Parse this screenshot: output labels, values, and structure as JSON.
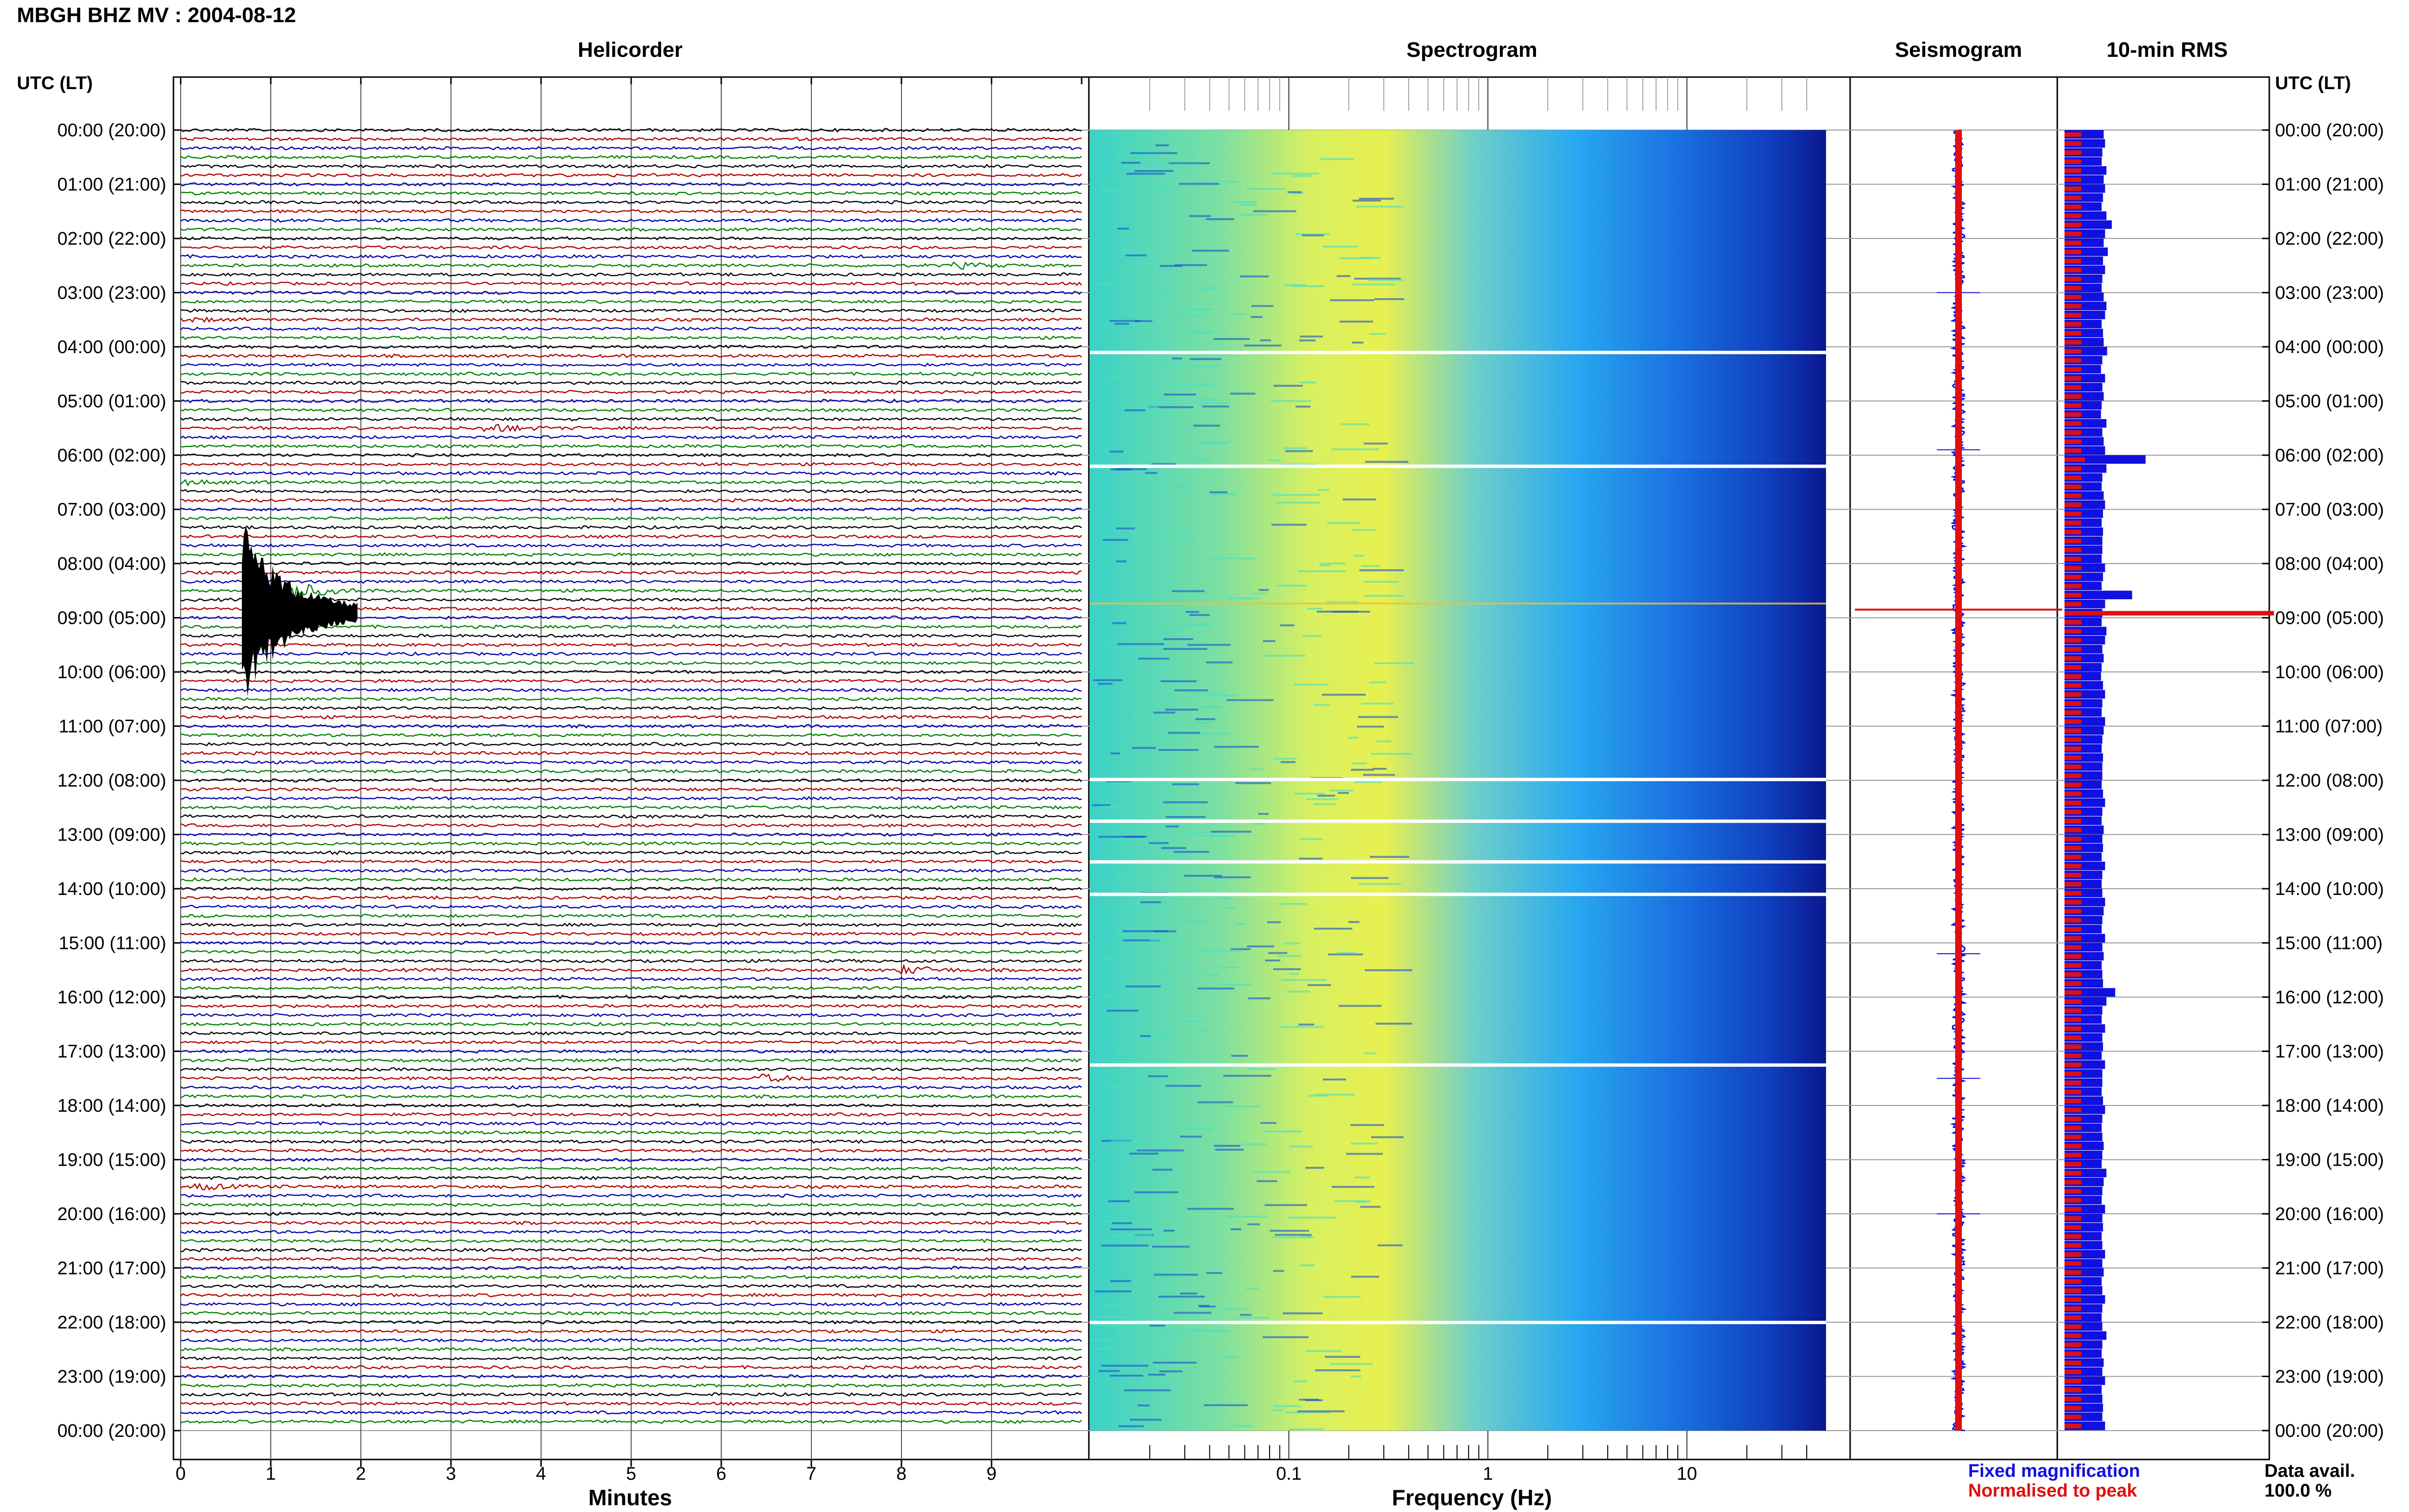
{
  "header": {
    "station_title": "MBGH BHZ MV : 2004-08-12"
  },
  "panels": {
    "helicorder_title": "Helicorder",
    "spectrogram_title": "Spectrogram",
    "seismogram_title": "Seismogram",
    "rms_title": "10-min RMS"
  },
  "axes": {
    "left_time_header": "UTC (LT)",
    "right_time_header": "UTC (LT)",
    "helicorder_xlabel": "Minutes",
    "spectrogram_xlabel": "Frequency (Hz)"
  },
  "legend": {
    "fixed_label": "Fixed magnification",
    "fixed_color": "#1010e0",
    "normalised_label": "Normalised to peak",
    "normalised_color": "#e01010"
  },
  "data_availability": {
    "label": "Data avail.",
    "value": "100.0 %"
  },
  "chart_data": [
    {
      "type": "line",
      "name": "Helicorder",
      "xlabel": "Minutes",
      "xlim": [
        0,
        10
      ],
      "x_ticks": [
        "0",
        "1",
        "2",
        "3",
        "4",
        "5",
        "6",
        "7",
        "8",
        "9"
      ],
      "time_labels": [
        "00:00 (20:00)",
        "01:00 (21:00)",
        "02:00 (22:00)",
        "03:00 (23:00)",
        "04:00 (00:00)",
        "05:00 (01:00)",
        "06:00 (02:00)",
        "07:00 (03:00)",
        "08:00 (04:00)",
        "09:00 (05:00)",
        "10:00 (06:00)",
        "11:00 (07:00)",
        "12:00 (08:00)",
        "13:00 (09:00)",
        "14:00 (10:00)",
        "15:00 (11:00)",
        "16:00 (12:00)",
        "17:00 (13:00)",
        "18:00 (14:00)",
        "19:00 (15:00)",
        "20:00 (16:00)",
        "21:00 (17:00)",
        "22:00 (18:00)",
        "23:00 (19:00)",
        "00:00 (20:00)"
      ],
      "trace_colors": [
        "#000000",
        "#b00000",
        "#0000b0",
        "#008000"
      ],
      "traces_per_hour": 6,
      "events": [
        {
          "hour": 8,
          "minute": 1.0,
          "amplitude": 10.0
        },
        {
          "hour": 5,
          "minute": 3.5,
          "amplitude": 1.6
        },
        {
          "hour": 15,
          "minute": 8.1,
          "amplitude": 1.6
        },
        {
          "hour": 17,
          "minute": 6.5,
          "amplitude": 1.4
        },
        {
          "hour": 2,
          "minute": 8.7,
          "amplitude": 1.0
        },
        {
          "hour": 19,
          "minute": 0.3,
          "amplitude": 1.0
        },
        {
          "hour": 6,
          "minute": 0.1,
          "amplitude": 0.9
        },
        {
          "hour": 3,
          "minute": 0.1,
          "amplitude": 0.8
        }
      ]
    },
    {
      "type": "heatmap",
      "name": "Spectrogram",
      "xlabel": "Frequency (Hz)",
      "x_scale": "log",
      "xlim": [
        0.01,
        50
      ],
      "x_ticks": [
        "0.1",
        "1",
        "10"
      ],
      "colormap": [
        "#3ad2c8",
        "#b8f070",
        "#f0f040",
        "#9ce0a0",
        "#30b0f0",
        "#1060d8",
        "#0a20a0"
      ],
      "gap_rows_hours": [
        4.1,
        6.2,
        11.98,
        12.75,
        13.5,
        14.1,
        17.25,
        22.0
      ]
    },
    {
      "type": "line",
      "name": "Seismogram",
      "spike_hours": [
        8.85,
        5.9,
        15.2,
        17.5,
        20.0,
        3.0
      ]
    },
    {
      "type": "bar",
      "name": "10-min RMS",
      "series": [
        {
          "name": "Fixed magnification",
          "color": "#1010e0",
          "values": [
            0.58,
            0.6,
            0.56,
            0.55,
            0.62,
            0.58,
            0.6,
            0.57,
            0.55,
            0.62,
            0.7,
            0.6,
            0.58,
            0.64,
            0.57,
            0.6,
            0.56,
            0.55,
            0.58,
            0.62,
            0.6,
            0.55,
            0.57,
            0.58,
            0.63,
            0.56,
            0.54,
            0.6,
            0.56,
            0.58,
            0.55,
            0.54,
            0.62,
            0.56,
            0.58,
            0.6,
            1.2,
            0.62,
            0.56,
            0.55,
            0.58,
            0.6,
            0.57,
            0.55,
            0.57,
            0.56,
            0.56,
            0.55,
            0.6,
            0.57,
            0.55,
            1.0,
            0.6,
            0.56,
            0.55,
            0.62,
            0.6,
            0.56,
            0.58,
            0.55,
            0.54,
            0.57,
            0.6,
            0.56,
            0.55,
            0.6,
            0.58,
            0.56,
            0.55,
            0.57,
            0.56,
            0.56,
            0.55,
            0.57,
            0.6,
            0.56,
            0.55,
            0.58,
            0.56,
            0.57,
            0.55,
            0.6,
            0.56,
            0.55,
            0.56,
            0.6,
            0.58,
            0.56,
            0.55,
            0.6,
            0.56,
            0.58,
            0.55,
            0.56,
            0.57,
            0.75,
            0.62,
            0.56,
            0.55,
            0.6,
            0.56,
            0.57,
            0.55,
            0.6,
            0.56,
            0.56,
            0.55,
            0.57,
            0.6,
            0.56,
            0.55,
            0.56,
            0.58,
            0.56,
            0.55,
            0.62,
            0.58,
            0.56,
            0.55,
            0.6,
            0.56,
            0.57,
            0.55,
            0.56,
            0.6,
            0.56,
            0.58,
            0.55,
            0.56,
            0.6,
            0.56,
            0.55,
            0.56,
            0.62,
            0.56,
            0.55,
            0.58,
            0.56,
            0.6,
            0.55,
            0.56,
            0.57,
            0.56,
            0.6
          ]
        },
        {
          "name": "Normalised to peak",
          "color": "#e01010",
          "values": [
            0.25,
            0.25,
            0.25,
            0.25,
            0.25,
            0.25,
            0.25,
            0.25,
            0.25,
            0.25,
            0.25,
            0.25,
            0.25,
            0.25,
            0.25,
            0.25,
            0.25,
            0.25,
            0.25,
            0.25,
            0.25,
            0.25,
            0.25,
            0.25,
            0.25,
            0.25,
            0.25,
            0.25,
            0.25,
            0.25,
            0.25,
            0.25,
            0.25,
            0.25,
            0.25,
            0.25,
            0.3,
            0.25,
            0.25,
            0.25,
            0.25,
            0.25,
            0.25,
            0.25,
            0.25,
            0.25,
            0.25,
            0.25,
            0.25,
            0.25,
            0.25,
            0.25,
            0.25,
            1.0,
            0.25,
            0.25,
            0.25,
            0.25,
            0.25,
            0.25,
            0.25,
            0.25,
            0.25,
            0.25,
            0.25,
            0.25,
            0.25,
            0.25,
            0.25,
            0.25,
            0.25,
            0.25,
            0.25,
            0.25,
            0.25,
            0.25,
            0.25,
            0.25,
            0.25,
            0.25,
            0.25,
            0.25,
            0.25,
            0.25,
            0.25,
            0.25,
            0.25,
            0.25,
            0.25,
            0.25,
            0.25,
            0.25,
            0.25,
            0.25,
            0.25,
            0.25,
            0.25,
            0.25,
            0.25,
            0.25,
            0.25,
            0.25,
            0.25,
            0.25,
            0.25,
            0.25,
            0.25,
            0.25,
            0.25,
            0.25,
            0.25,
            0.25,
            0.25,
            0.25,
            0.25,
            0.25,
            0.25,
            0.25,
            0.25,
            0.25,
            0.25,
            0.25,
            0.25,
            0.25,
            0.25,
            0.25,
            0.25,
            0.25,
            0.25,
            0.25,
            0.25,
            0.25,
            0.25,
            0.25,
            0.25,
            0.25,
            0.25,
            0.25,
            0.25,
            0.25,
            0.25,
            0.25,
            0.25,
            0.25
          ]
        }
      ]
    }
  ]
}
